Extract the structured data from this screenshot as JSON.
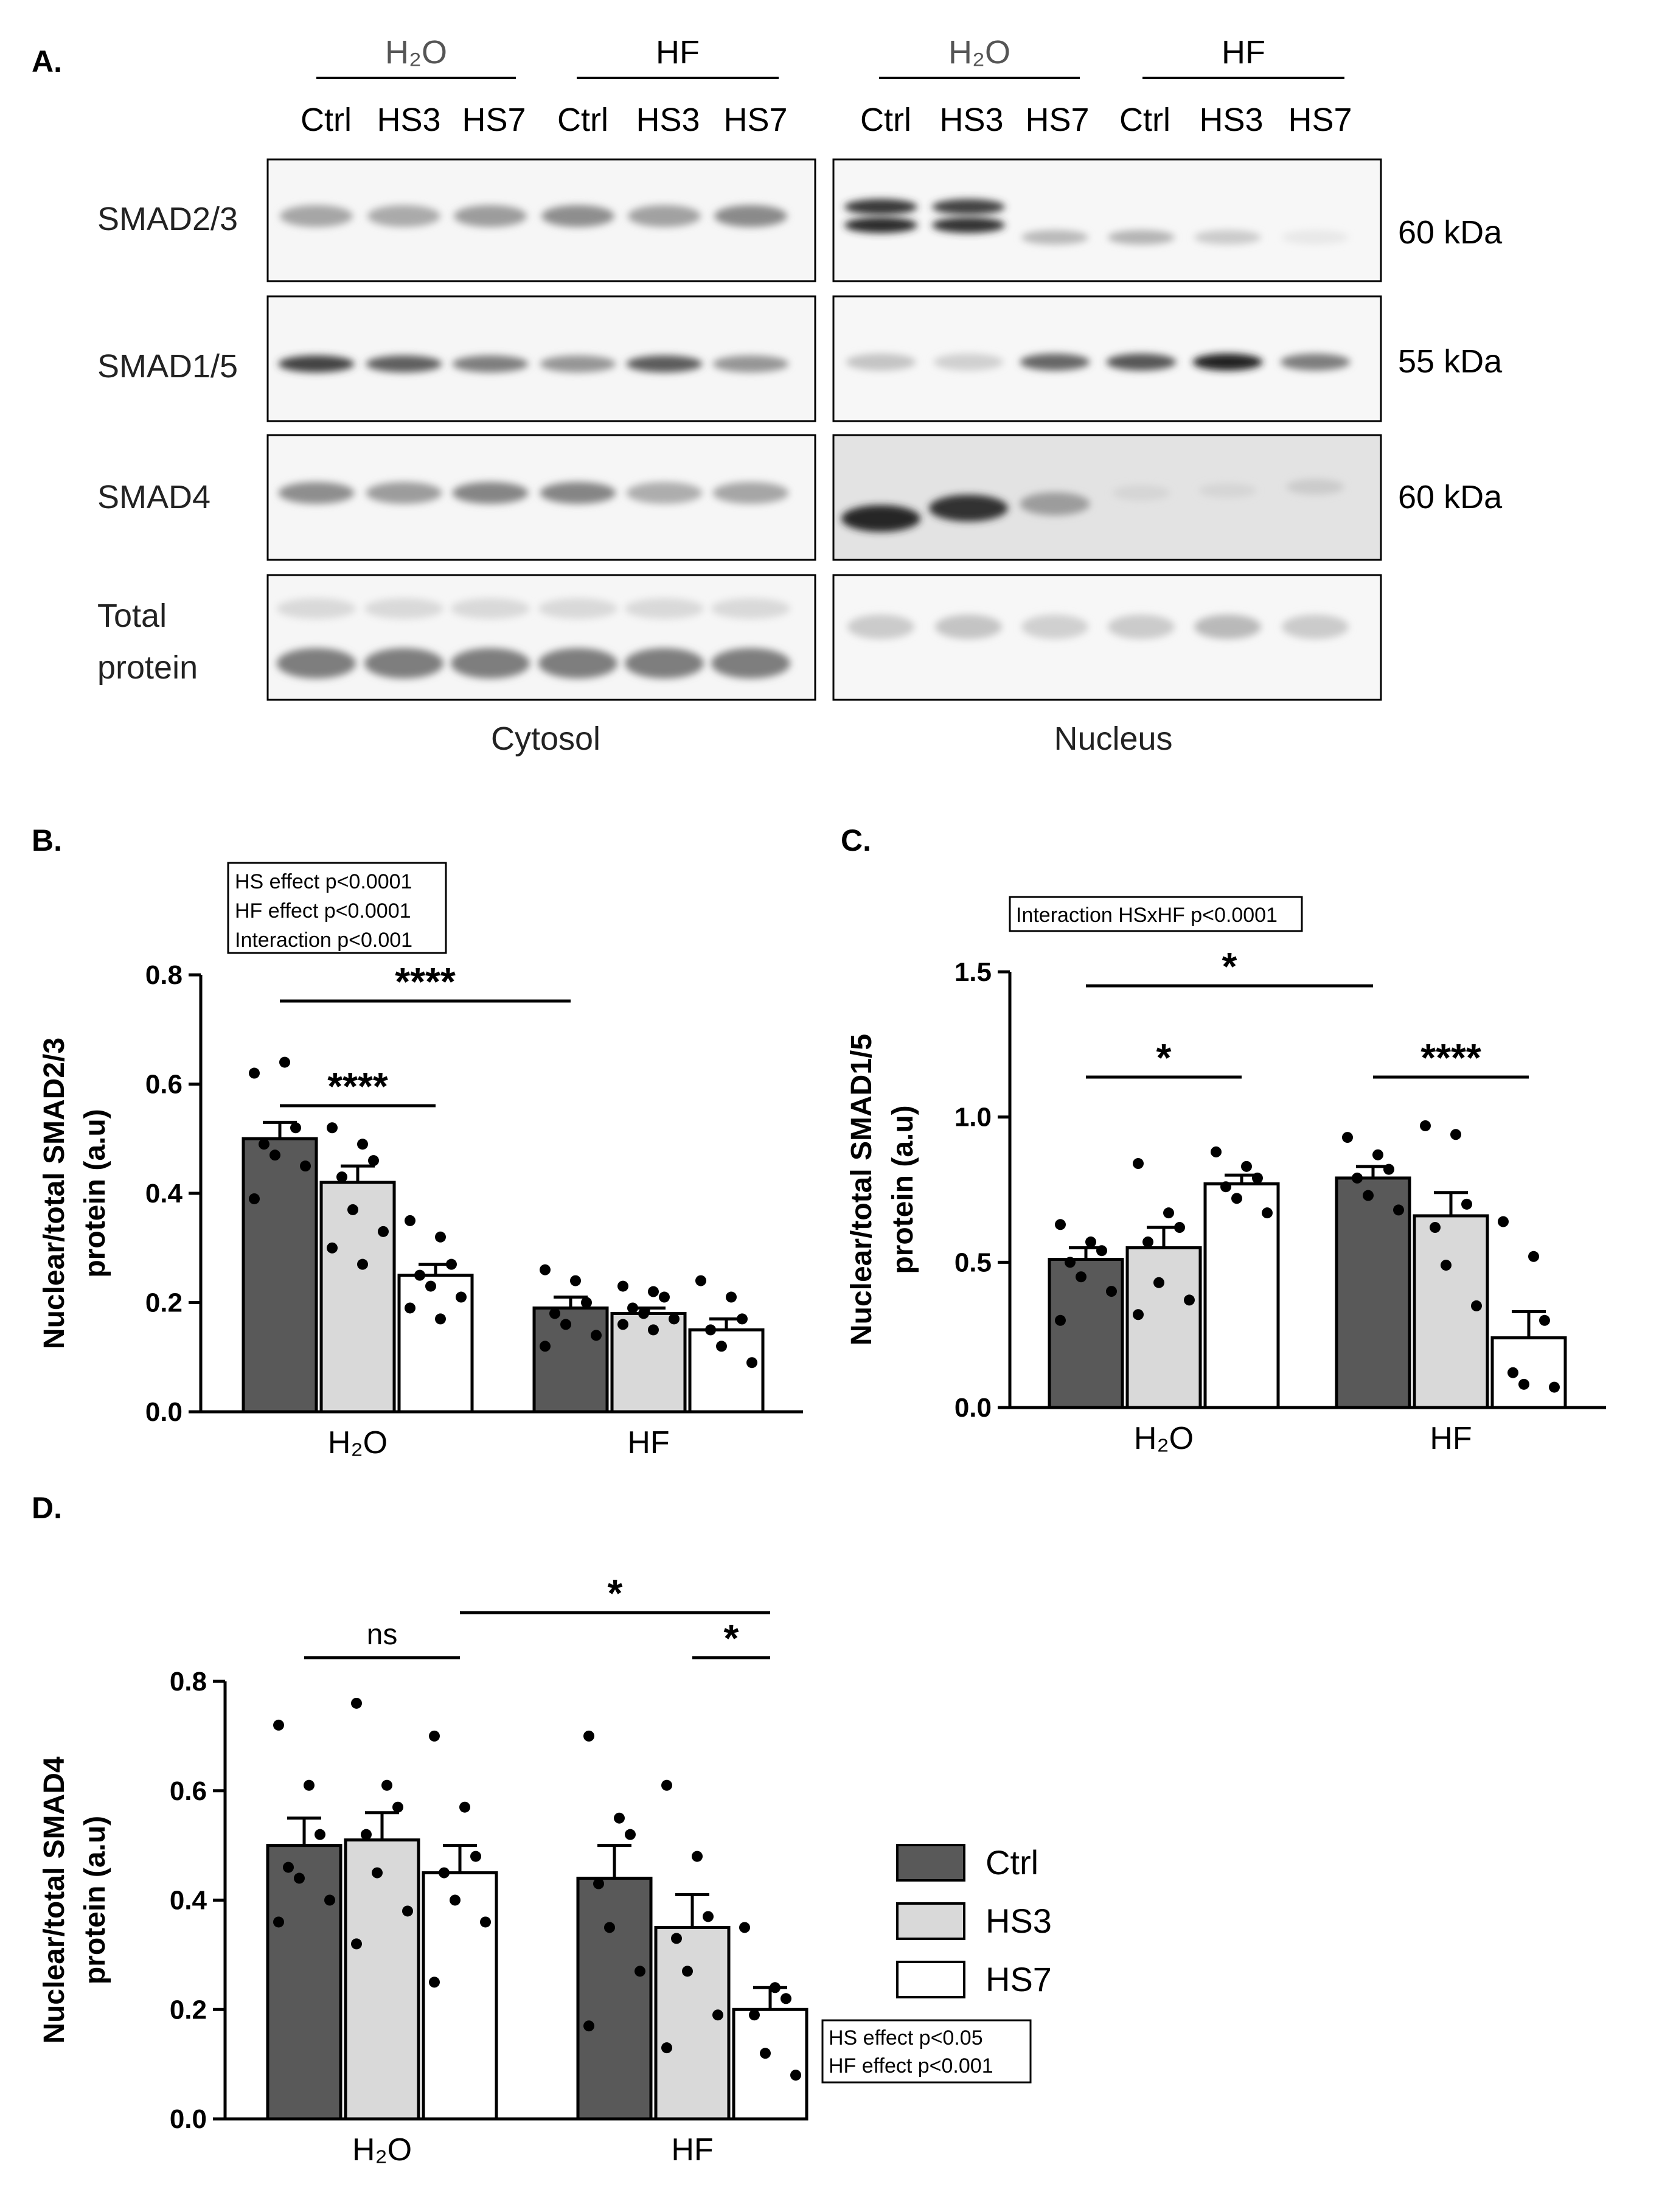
{
  "panel_a": {
    "label": "A.",
    "groups": [
      "H₂O",
      "HF",
      "H₂O",
      "HF"
    ],
    "lanes": [
      "Ctrl",
      "HS3",
      "HS7",
      "Ctrl",
      "HS3",
      "HS7",
      "Ctrl",
      "HS3",
      "HS7",
      "Ctrl",
      "HS3",
      "HS7"
    ],
    "rows": [
      {
        "name": "SMAD2/3",
        "kda": "60 kDa"
      },
      {
        "name": "SMAD1/5",
        "kda": "55 kDa"
      },
      {
        "name": "SMAD4",
        "kda": "60 kDa"
      },
      {
        "name_line1": "Total",
        "name_line2": "protein",
        "kda": ""
      }
    ],
    "fractions": [
      "Cytosol",
      "Nucleus"
    ]
  },
  "legend": {
    "items": [
      "Ctrl",
      "HS3",
      "HS7"
    ],
    "colors": [
      "#595959",
      "#d9d9d9",
      "#ffffff"
    ]
  },
  "chart_data": [
    {
      "type": "bar",
      "panel_label": "B.",
      "categories": [
        "H₂O",
        "HF"
      ],
      "ylabel": "Nuclear/total SMAD2/3 protein (a.u)",
      "ylim": [
        0,
        0.8
      ],
      "yticks": [
        "0.0",
        "0.2",
        "0.4",
        "0.6",
        "0.8"
      ],
      "series": [
        {
          "name": "Ctrl",
          "values": [
            0.5,
            0.19
          ],
          "sem": [
            0.03,
            0.02
          ],
          "points": [
            [
              0.62,
              0.64,
              0.52,
              0.49,
              0.47,
              0.45,
              0.39
            ],
            [
              0.26,
              0.24,
              0.2,
              0.18,
              0.16,
              0.14,
              0.12
            ]
          ]
        },
        {
          "name": "HS3",
          "values": [
            0.42,
            0.18
          ],
          "sem": [
            0.03,
            0.01
          ],
          "points": [
            [
              0.52,
              0.49,
              0.46,
              0.43,
              0.37,
              0.33,
              0.3,
              0.27
            ],
            [
              0.23,
              0.22,
              0.21,
              0.19,
              0.18,
              0.17,
              0.16,
              0.15
            ]
          ]
        },
        {
          "name": "HS7",
          "values": [
            0.25,
            0.15
          ],
          "sem": [
            0.02,
            0.02
          ],
          "points": [
            [
              0.35,
              0.32,
              0.27,
              0.25,
              0.23,
              0.21,
              0.19,
              0.17
            ],
            [
              0.24,
              0.21,
              0.17,
              0.15,
              0.12,
              0.09
            ]
          ]
        }
      ],
      "stats_box": [
        "HS effect p<0.0001",
        "HF effect p<0.0001",
        "Interaction p<0.001"
      ],
      "significance": [
        {
          "label": "****",
          "from": "H₂O:Ctrl",
          "to": "H₂O:HS7"
        },
        {
          "label": "****",
          "from": "H₂O:Ctrl",
          "to": "HF:Ctrl"
        }
      ]
    },
    {
      "type": "bar",
      "panel_label": "C.",
      "categories": [
        "H₂O",
        "HF"
      ],
      "ylabel": "Nuclear/total SMAD1/5 protein (a.u)",
      "ylim": [
        0,
        1.5
      ],
      "yticks": [
        "0.0",
        "0.5",
        "1.0",
        "1.5"
      ],
      "series": [
        {
          "name": "Ctrl",
          "values": [
            0.51,
            0.79
          ],
          "sem": [
            0.04,
            0.04
          ],
          "points": [
            [
              0.63,
              0.57,
              0.54,
              0.5,
              0.45,
              0.4,
              0.3
            ],
            [
              0.93,
              0.87,
              0.82,
              0.79,
              0.73,
              0.68
            ]
          ]
        },
        {
          "name": "HS3",
          "values": [
            0.55,
            0.66
          ],
          "sem": [
            0.07,
            0.08
          ],
          "points": [
            [
              0.84,
              0.67,
              0.62,
              0.57,
              0.43,
              0.37,
              0.32
            ],
            [
              0.97,
              0.94,
              0.7,
              0.62,
              0.49,
              0.35
            ]
          ]
        },
        {
          "name": "HS7",
          "values": [
            0.77,
            0.24
          ],
          "sem": [
            0.03,
            0.09
          ],
          "points": [
            [
              0.88,
              0.83,
              0.79,
              0.76,
              0.72,
              0.67
            ],
            [
              0.64,
              0.52,
              0.3,
              0.12,
              0.08,
              0.07
            ]
          ]
        }
      ],
      "stats_box": [
        "Interaction HSxHF p<0.0001"
      ],
      "significance": [
        {
          "label": "*",
          "from": "H₂O:Ctrl",
          "to": "H₂O:HS7"
        },
        {
          "label": "****",
          "from": "HF:Ctrl",
          "to": "HF:HS7"
        },
        {
          "label": "*",
          "from": "H₂O:Ctrl",
          "to": "HF:Ctrl"
        }
      ]
    },
    {
      "type": "bar",
      "panel_label": "D.",
      "categories": [
        "H₂O",
        "HF"
      ],
      "ylabel": "Nuclear/total SMAD4 protein (a.u)",
      "ylim": [
        0,
        0.8
      ],
      "yticks": [
        "0.0",
        "0.2",
        "0.4",
        "0.6",
        "0.8"
      ],
      "series": [
        {
          "name": "Ctrl",
          "values": [
            0.5,
            0.44
          ],
          "sem": [
            0.05,
            0.06
          ],
          "points": [
            [
              0.72,
              0.61,
              0.52,
              0.46,
              0.44,
              0.4,
              0.36
            ],
            [
              0.7,
              0.55,
              0.52,
              0.43,
              0.35,
              0.27,
              0.17
            ]
          ]
        },
        {
          "name": "HS3",
          "values": [
            0.51,
            0.35
          ],
          "sem": [
            0.05,
            0.06
          ],
          "points": [
            [
              0.76,
              0.61,
              0.57,
              0.52,
              0.45,
              0.38,
              0.32
            ],
            [
              0.61,
              0.48,
              0.37,
              0.33,
              0.27,
              0.19,
              0.13
            ]
          ]
        },
        {
          "name": "HS7",
          "values": [
            0.45,
            0.2
          ],
          "sem": [
            0.05,
            0.04
          ],
          "points": [
            [
              0.7,
              0.57,
              0.48,
              0.45,
              0.4,
              0.36,
              0.25
            ],
            [
              0.35,
              0.24,
              0.22,
              0.19,
              0.12,
              0.08
            ]
          ]
        }
      ],
      "stats_box": [
        "HS effect p<0.05",
        "HF effect p<0.001"
      ],
      "significance": [
        {
          "label": "ns",
          "from": "H₂O:Ctrl",
          "to": "H₂O:HS7"
        },
        {
          "label": "*",
          "from": "HF:HS3",
          "to": "HF:HS7"
        },
        {
          "label": "*",
          "from": "H₂O:HS7",
          "to": "HF:HS7"
        }
      ]
    }
  ]
}
